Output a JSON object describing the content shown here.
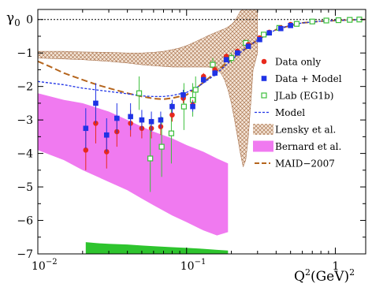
{
  "chart_data": {
    "type": "scatter",
    "title": "",
    "xlabel": "Q",
    "xlabel_sup1": "2",
    "xlabel_unit": "(GeV)",
    "xlabel_sup2": "2",
    "ylabel": "γ",
    "ylabel_sub": "0",
    "xscale": "log",
    "xlim": [
      0.01,
      1.6
    ],
    "ylim": [
      -7,
      0.3
    ],
    "x_ticks": [
      {
        "value": 0.01,
        "label": "10",
        "sup": "−2"
      },
      {
        "value": 0.1,
        "label": "10",
        "sup": "−1"
      },
      {
        "value": 1,
        "label": "1",
        "sup": ""
      }
    ],
    "y_ticks": [
      {
        "value": 0,
        "label": "0"
      },
      {
        "value": -1,
        "label": "−1"
      },
      {
        "value": -2,
        "label": "−2"
      },
      {
        "value": -3,
        "label": "−3"
      },
      {
        "value": -4,
        "label": "−4"
      },
      {
        "value": -5,
        "label": "−5"
      },
      {
        "value": -6,
        "label": "−6"
      },
      {
        "value": -7,
        "label": "−7"
      }
    ],
    "zero_line": true,
    "legend_position": "right",
    "colors": {
      "data_only": "#e8291c",
      "data_model": "#1f33e6",
      "jlab": "#3cbf3c",
      "model": "#1f33e6",
      "lensky": "#b07a55",
      "bernard": "#f07af0",
      "maid": "#b5651d",
      "green_band": "#2ec42e"
    },
    "legend": [
      {
        "key": "data_only",
        "label": "Data only"
      },
      {
        "key": "data_model",
        "label": "Data + Model"
      },
      {
        "key": "jlab",
        "label": "JLab (EG1b)"
      },
      {
        "key": "model",
        "label": "Model"
      },
      {
        "key": "lensky",
        "label": "Lensky et al."
      },
      {
        "key": "bernard",
        "label": "Bernard et al."
      },
      {
        "key": "maid",
        "label": "MAID−2007"
      }
    ],
    "series": {
      "data_only": [
        {
          "x": 0.021,
          "y": -3.9,
          "err": 0.6
        },
        {
          "x": 0.0245,
          "y": -3.1,
          "err": 0.6
        },
        {
          "x": 0.029,
          "y": -3.95,
          "err": 0.5
        },
        {
          "x": 0.034,
          "y": -3.35,
          "err": 0.45
        },
        {
          "x": 0.042,
          "y": -3.1,
          "err": 0.4
        },
        {
          "x": 0.05,
          "y": -3.25,
          "err": 0.3
        },
        {
          "x": 0.058,
          "y": -3.25,
          "err": 0.3
        },
        {
          "x": 0.067,
          "y": -3.2,
          "err": 0.25
        },
        {
          "x": 0.08,
          "y": -2.85,
          "err": 0.2
        },
        {
          "x": 0.095,
          "y": -2.35,
          "err": 0.15
        },
        {
          "x": 0.11,
          "y": -2.55,
          "err": 0.15
        },
        {
          "x": 0.13,
          "y": -1.7,
          "err": 0.1
        },
        {
          "x": 0.155,
          "y": -1.5,
          "err": 0.1
        },
        {
          "x": 0.185,
          "y": -1.1,
          "err": 0.08
        },
        {
          "x": 0.22,
          "y": -0.95,
          "err": 0.08
        },
        {
          "x": 0.26,
          "y": -0.75,
          "err": 0.06
        },
        {
          "x": 0.31,
          "y": -0.55,
          "err": 0.05
        },
        {
          "x": 0.36,
          "y": -0.38,
          "err": 0.04
        },
        {
          "x": 0.43,
          "y": -0.25,
          "err": 0.03
        },
        {
          "x": 0.5,
          "y": -0.15,
          "err": 0.03
        }
      ],
      "data_model": [
        {
          "x": 0.021,
          "y": -3.25,
          "err": 0.6
        },
        {
          "x": 0.0245,
          "y": -2.5,
          "err": 0.6
        },
        {
          "x": 0.029,
          "y": -3.45,
          "err": 0.5
        },
        {
          "x": 0.034,
          "y": -2.95,
          "err": 0.45
        },
        {
          "x": 0.042,
          "y": -2.9,
          "err": 0.4
        },
        {
          "x": 0.05,
          "y": -3.0,
          "err": 0.3
        },
        {
          "x": 0.058,
          "y": -3.05,
          "err": 0.3
        },
        {
          "x": 0.067,
          "y": -3.0,
          "err": 0.25
        },
        {
          "x": 0.08,
          "y": -2.6,
          "err": 0.2
        },
        {
          "x": 0.095,
          "y": -2.25,
          "err": 0.15
        },
        {
          "x": 0.11,
          "y": -2.6,
          "err": 0.15
        },
        {
          "x": 0.13,
          "y": -1.8,
          "err": 0.1
        },
        {
          "x": 0.155,
          "y": -1.6,
          "err": 0.1
        },
        {
          "x": 0.185,
          "y": -1.2,
          "err": 0.08
        },
        {
          "x": 0.22,
          "y": -1.0,
          "err": 0.08
        },
        {
          "x": 0.26,
          "y": -0.8,
          "err": 0.06
        },
        {
          "x": 0.31,
          "y": -0.6,
          "err": 0.05
        },
        {
          "x": 0.36,
          "y": -0.4,
          "err": 0.04
        },
        {
          "x": 0.43,
          "y": -0.27,
          "err": 0.03
        },
        {
          "x": 0.5,
          "y": -0.18,
          "err": 0.03
        }
      ],
      "jlab": [
        {
          "x": 0.048,
          "y": -2.2,
          "err": 0.5
        },
        {
          "x": 0.057,
          "y": -4.15,
          "err": 1.0
        },
        {
          "x": 0.068,
          "y": -3.8,
          "err": 0.9
        },
        {
          "x": 0.079,
          "y": -3.4,
          "err": 0.9
        },
        {
          "x": 0.096,
          "y": -2.6,
          "err": 0.7
        },
        {
          "x": 0.11,
          "y": -2.4,
          "err": 0.5
        },
        {
          "x": 0.115,
          "y": -2.1,
          "err": 0.4
        },
        {
          "x": 0.15,
          "y": -1.35,
          "err": 0.2
        },
        {
          "x": 0.2,
          "y": -1.15,
          "err": 0.15
        },
        {
          "x": 0.25,
          "y": -0.7,
          "err": 0.1
        },
        {
          "x": 0.33,
          "y": -0.45,
          "err": 0.06
        },
        {
          "x": 0.42,
          "y": -0.25,
          "err": 0.04
        },
        {
          "x": 0.55,
          "y": -0.13,
          "err": 0.03
        },
        {
          "x": 0.7,
          "y": -0.06,
          "err": 0.02
        },
        {
          "x": 0.87,
          "y": -0.03,
          "err": 0.02
        },
        {
          "x": 1.05,
          "y": -0.02,
          "err": 0.01
        },
        {
          "x": 1.25,
          "y": -0.01,
          "err": 0.01
        },
        {
          "x": 1.45,
          "y": 0.0,
          "err": 0.01
        }
      ],
      "model": [
        {
          "x": 0.01,
          "y": -1.85
        },
        {
          "x": 0.015,
          "y": -1.95
        },
        {
          "x": 0.02,
          "y": -2.05
        },
        {
          "x": 0.03,
          "y": -2.15
        },
        {
          "x": 0.04,
          "y": -2.22
        },
        {
          "x": 0.05,
          "y": -2.28
        },
        {
          "x": 0.06,
          "y": -2.3
        },
        {
          "x": 0.07,
          "y": -2.3
        },
        {
          "x": 0.08,
          "y": -2.27
        },
        {
          "x": 0.1,
          "y": -2.18
        },
        {
          "x": 0.12,
          "y": -2.0
        },
        {
          "x": 0.15,
          "y": -1.7
        },
        {
          "x": 0.18,
          "y": -1.4
        },
        {
          "x": 0.22,
          "y": -1.05
        },
        {
          "x": 0.27,
          "y": -0.75
        },
        {
          "x": 0.33,
          "y": -0.5
        },
        {
          "x": 0.4,
          "y": -0.3
        },
        {
          "x": 0.5,
          "y": -0.17
        },
        {
          "x": 0.6,
          "y": -0.1
        },
        {
          "x": 0.8,
          "y": -0.05
        },
        {
          "x": 1.0,
          "y": -0.03
        },
        {
          "x": 1.3,
          "y": -0.01
        },
        {
          "x": 1.6,
          "y": 0.0
        }
      ],
      "maid": [
        {
          "x": 0.01,
          "y": -1.25
        },
        {
          "x": 0.012,
          "y": -1.4
        },
        {
          "x": 0.015,
          "y": -1.6
        },
        {
          "x": 0.02,
          "y": -1.8
        },
        {
          "x": 0.025,
          "y": -1.95
        },
        {
          "x": 0.03,
          "y": -2.05
        },
        {
          "x": 0.04,
          "y": -2.2
        },
        {
          "x": 0.05,
          "y": -2.3
        },
        {
          "x": 0.06,
          "y": -2.36
        },
        {
          "x": 0.07,
          "y": -2.38
        },
        {
          "x": 0.08,
          "y": -2.35
        },
        {
          "x": 0.1,
          "y": -2.25
        },
        {
          "x": 0.12,
          "y": -2.0
        },
        {
          "x": 0.15,
          "y": -1.65
        },
        {
          "x": 0.18,
          "y": -1.35
        },
        {
          "x": 0.22,
          "y": -1.05
        },
        {
          "x": 0.27,
          "y": -0.75
        },
        {
          "x": 0.33,
          "y": -0.5
        },
        {
          "x": 0.4,
          "y": -0.3
        },
        {
          "x": 0.5,
          "y": -0.18
        },
        {
          "x": 0.6,
          "y": -0.1
        },
        {
          "x": 0.8,
          "y": -0.05
        },
        {
          "x": 1.0,
          "y": -0.03
        },
        {
          "x": 1.3,
          "y": -0.01
        },
        {
          "x": 1.6,
          "y": 0.0
        }
      ],
      "lensky_band": {
        "x": [
          0.01,
          0.015,
          0.02,
          0.03,
          0.04,
          0.05,
          0.06,
          0.07,
          0.08,
          0.09,
          0.1,
          0.11,
          0.12,
          0.13,
          0.14,
          0.15,
          0.16,
          0.17,
          0.18,
          0.19,
          0.2,
          0.21,
          0.22,
          0.23,
          0.24,
          0.25,
          0.26,
          0.27,
          0.28,
          0.3
        ],
        "upper": [
          -0.95,
          -0.95,
          -0.97,
          -0.98,
          -1.0,
          -1.0,
          -0.98,
          -0.95,
          -0.9,
          -0.85,
          -0.78,
          -0.7,
          -0.62,
          -0.55,
          -0.48,
          -0.42,
          -0.37,
          -0.32,
          -0.28,
          -0.22,
          -0.15,
          -0.05,
          0.1,
          0.25,
          0.3,
          0.3,
          0.3,
          0.3,
          0.3,
          0.3
        ],
        "lower": [
          -1.15,
          -1.18,
          -1.2,
          -1.25,
          -1.3,
          -1.35,
          -1.38,
          -1.4,
          -1.42,
          -1.42,
          -1.42,
          -1.42,
          -1.42,
          -1.42,
          -1.42,
          -1.45,
          -1.5,
          -1.6,
          -1.8,
          -2.1,
          -2.5,
          -3.0,
          -3.5,
          -4.0,
          -4.4,
          -4.2,
          -3.5,
          -2.5,
          -1.5,
          -1.0
        ]
      },
      "bernard_band": {
        "x": [
          0.01,
          0.015,
          0.02,
          0.03,
          0.04,
          0.05,
          0.06,
          0.08,
          0.1,
          0.13,
          0.16,
          0.19
        ],
        "upper": [
          -2.2,
          -2.4,
          -2.5,
          -2.75,
          -3.0,
          -3.2,
          -3.35,
          -3.55,
          -3.75,
          -3.95,
          -4.15,
          -4.3
        ],
        "lower": [
          -3.9,
          -4.2,
          -4.5,
          -4.85,
          -5.1,
          -5.35,
          -5.55,
          -5.85,
          -6.05,
          -6.3,
          -6.45,
          -6.35
        ]
      },
      "green_band": {
        "x": [
          0.021,
          0.025,
          0.03,
          0.04,
          0.05,
          0.06,
          0.08,
          0.1,
          0.13,
          0.16,
          0.19
        ],
        "upper": [
          -6.65,
          -6.68,
          -6.7,
          -6.72,
          -6.75,
          -6.77,
          -6.8,
          -6.82,
          -6.85,
          -6.88,
          -6.9
        ],
        "lower": [
          -7.0,
          -7.0,
          -7.0,
          -7.0,
          -7.0,
          -7.0,
          -7.0,
          -7.0,
          -7.0,
          -7.0,
          -7.0
        ]
      }
    }
  }
}
